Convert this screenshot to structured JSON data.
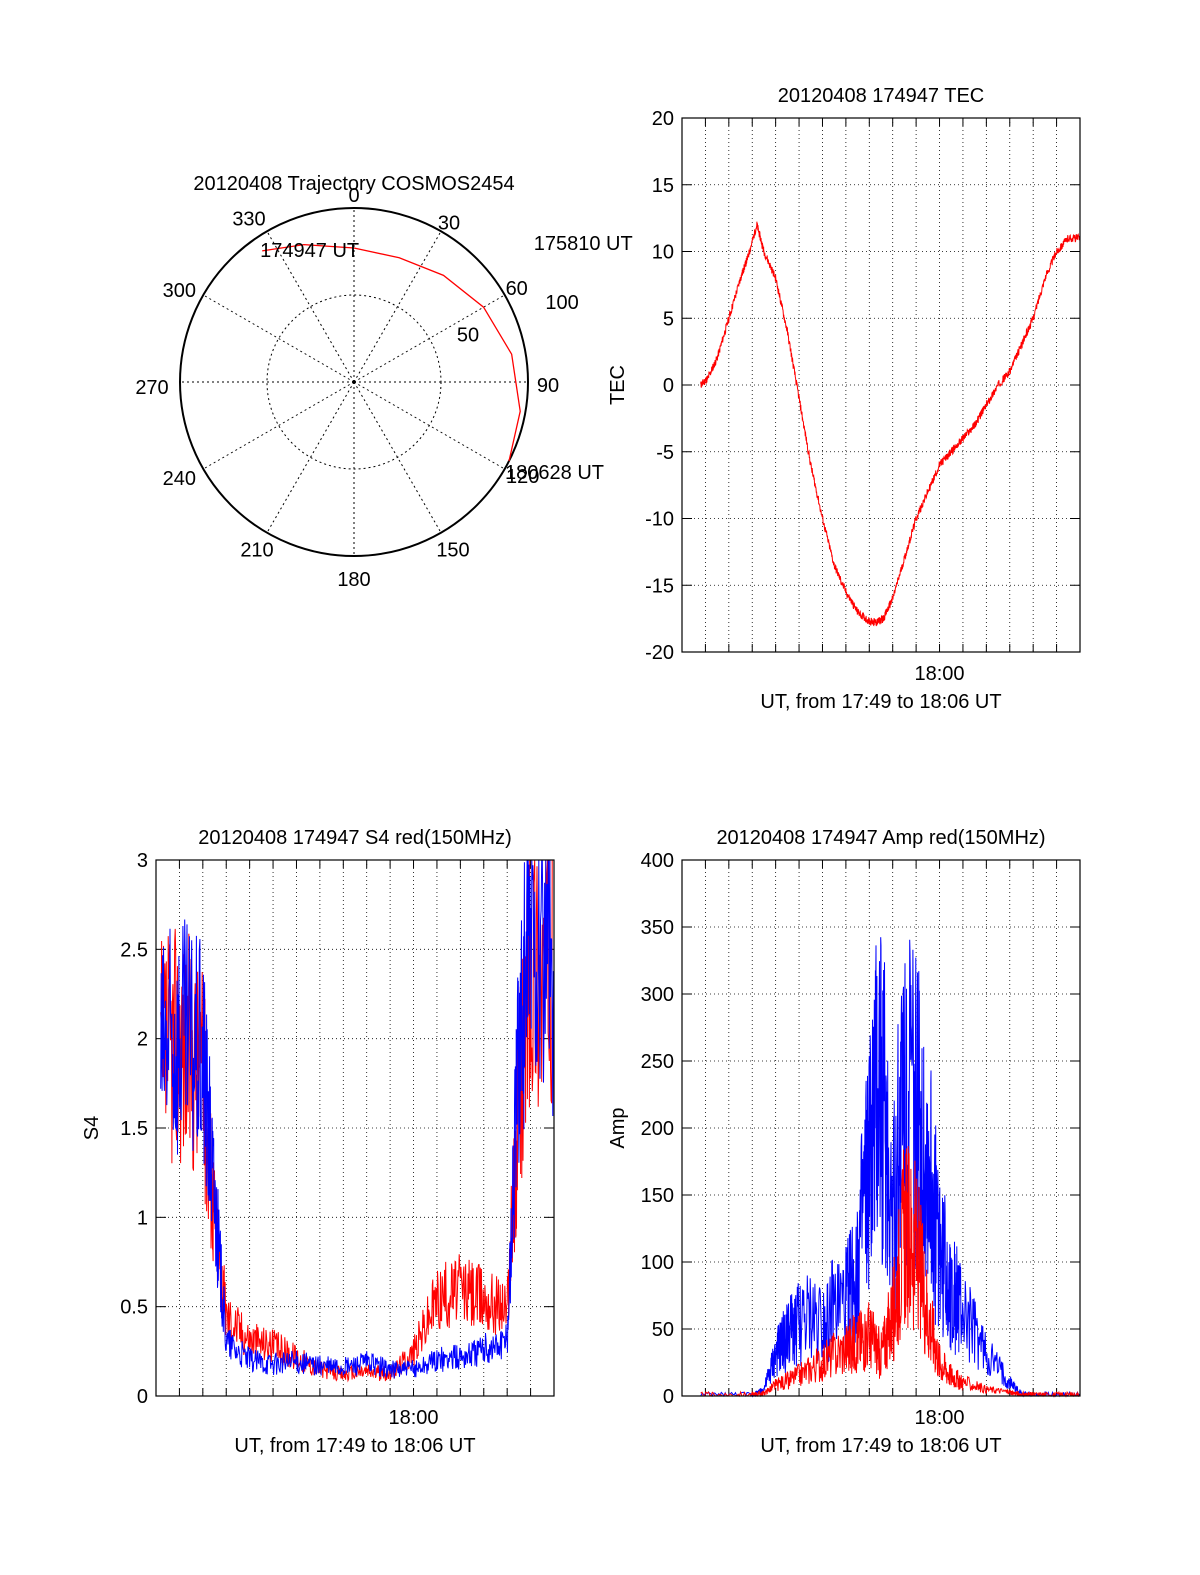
{
  "chart_data": [
    {
      "type": "polar",
      "title": "20120408 Trajectory COSMOS2454",
      "azimuth_labels": [
        "0",
        "30",
        "60",
        "90",
        "120",
        "150",
        "180",
        "210",
        "240",
        "270",
        "300",
        "330"
      ],
      "radius_labels": [
        "50",
        "100"
      ],
      "trajectory": {
        "color": "#ff0000",
        "points": [
          {
            "az": 325,
            "r": 92
          },
          {
            "az": 340,
            "r": 84
          },
          {
            "az": 0,
            "r": 77
          },
          {
            "az": 20,
            "r": 76
          },
          {
            "az": 40,
            "r": 80
          },
          {
            "az": 60,
            "r": 86
          },
          {
            "az": 80,
            "r": 92
          },
          {
            "az": 100,
            "r": 97
          },
          {
            "az": 117,
            "r": 100
          }
        ]
      },
      "annotations": [
        {
          "text": "174947 UT",
          "az": 325,
          "r": 92
        },
        {
          "text": "175810 UT",
          "az": 55,
          "r": 84
        },
        {
          "text": "180628 UT",
          "az": 117,
          "r": 100
        }
      ]
    },
    {
      "type": "line",
      "title": "20120408 174947 TEC",
      "xlabel": "UT, from 17:49 to 18:06 UT",
      "ylabel": "TEC",
      "xtick_label": "18:00",
      "xlim": [
        0,
        17
      ],
      "ylim": [
        -20,
        20
      ],
      "yticks": [
        "-20",
        "-15",
        "-10",
        "-5",
        "0",
        "5",
        "10",
        "15",
        "20"
      ],
      "grid": true,
      "series": [
        {
          "color": "#ff0000",
          "x": [
            0.8,
            1.1,
            1.5,
            2.0,
            2.5,
            2.8,
            3.2,
            3.5,
            4.0,
            4.5,
            5.0,
            5.5,
            6.0,
            6.5,
            7.0,
            7.5,
            8.0,
            8.3,
            8.6,
            9.0,
            9.5,
            10.0,
            10.5,
            11.0,
            11.5,
            12.0,
            12.5,
            13.0,
            13.5,
            14.0,
            14.5,
            15.0,
            15.5,
            16.0,
            16.5,
            17.0
          ],
          "y": [
            0,
            0.5,
            2,
            5,
            8,
            9.5,
            12,
            10,
            8,
            4,
            -1,
            -6,
            -10,
            -13.5,
            -15.5,
            -17,
            -17.7,
            -17.8,
            -17.5,
            -16,
            -13,
            -10,
            -8,
            -6,
            -5,
            -4,
            -3,
            -1.5,
            0,
            1,
            3,
            5,
            8,
            10,
            11,
            11
          ]
        }
      ]
    },
    {
      "type": "line",
      "title": "20120408 174947 S4 red(150MHz)",
      "xlabel": "UT, from 17:49 to 18:06 UT",
      "ylabel": "S4",
      "xtick_label": "18:00",
      "xlim": [
        0,
        17
      ],
      "ylim": [
        0,
        3
      ],
      "yticks": [
        "0",
        "0.5",
        "1",
        "1.5",
        "2",
        "2.5",
        "3"
      ],
      "grid": true,
      "series": [
        {
          "color": "#ff0000",
          "x": [
            0.2,
            1.0,
            2.0,
            2.5,
            3.0,
            4.0,
            5.0,
            6.0,
            7.0,
            8.0,
            9.0,
            10.0,
            11.0,
            12.0,
            13.0,
            14.0,
            15.0,
            15.5,
            16.0,
            17.0
          ],
          "y": [
            1.9,
            2.0,
            1.8,
            1.0,
            0.45,
            0.32,
            0.28,
            0.22,
            0.15,
            0.12,
            0.14,
            0.12,
            0.25,
            0.55,
            0.6,
            0.55,
            0.5,
            1.6,
            2.5,
            2.4
          ]
        },
        {
          "color": "#0000ff",
          "x": [
            0.2,
            1.0,
            2.0,
            2.5,
            3.0,
            4.0,
            5.0,
            6.0,
            7.0,
            8.0,
            9.0,
            10.0,
            11.0,
            12.0,
            13.0,
            14.0,
            15.0,
            15.5,
            16.0,
            17.0
          ],
          "y": [
            1.9,
            2.0,
            1.9,
            1.1,
            0.3,
            0.2,
            0.18,
            0.19,
            0.17,
            0.16,
            0.19,
            0.15,
            0.15,
            0.2,
            0.22,
            0.26,
            0.3,
            2.0,
            2.6,
            2.4
          ]
        }
      ]
    },
    {
      "type": "line",
      "title": "20120408 174947 Amp red(150MHz)",
      "xlabel": "UT, from 17:49 to 18:06 UT",
      "ylabel": "Amp",
      "xtick_label": "18:00",
      "xlim": [
        0,
        17
      ],
      "ylim": [
        0,
        400
      ],
      "yticks": [
        "0",
        "50",
        "100",
        "150",
        "200",
        "250",
        "300",
        "350",
        "400"
      ],
      "grid": true,
      "series": [
        {
          "color": "#0000ff",
          "x": [
            0.8,
            3.0,
            3.5,
            4.0,
            4.5,
            5.0,
            6.0,
            7.0,
            7.5,
            8.0,
            8.5,
            9.0,
            9.5,
            10.0,
            10.5,
            11.0,
            11.5,
            12.0,
            13.0,
            14.0,
            14.5,
            15.0,
            16.0,
            17.0
          ],
          "y": [
            1,
            1,
            5,
            30,
            45,
            55,
            60,
            70,
            100,
            170,
            240,
            130,
            240,
            210,
            170,
            110,
            80,
            60,
            30,
            10,
            2,
            1,
            1,
            1
          ]
        },
        {
          "color": "#ff0000",
          "x": [
            0.8,
            3.0,
            3.5,
            4.0,
            5.0,
            6.0,
            7.0,
            7.5,
            8.0,
            8.5,
            9.0,
            9.5,
            10.0,
            10.5,
            11.0,
            11.5,
            12.0,
            13.0,
            14.0,
            14.5,
            15.0,
            16.0,
            17.0
          ],
          "y": [
            1,
            1,
            2,
            8,
            15,
            25,
            35,
            40,
            45,
            30,
            60,
            120,
            110,
            60,
            25,
            15,
            10,
            5,
            3,
            1,
            1,
            1,
            1
          ]
        }
      ]
    }
  ]
}
